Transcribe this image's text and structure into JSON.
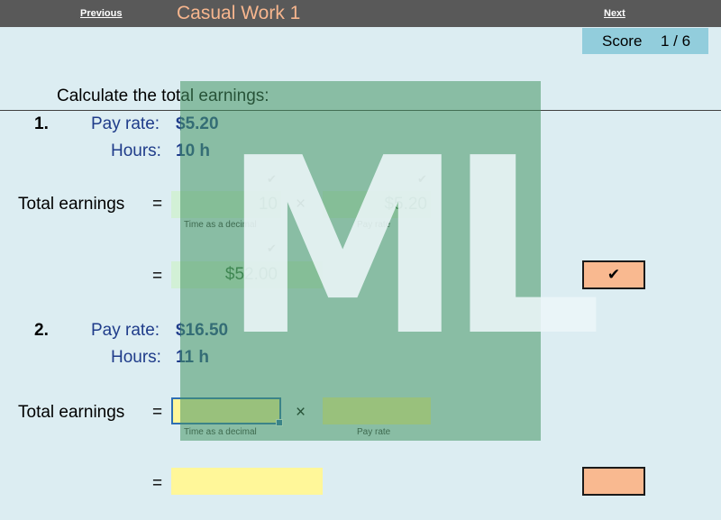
{
  "nav": {
    "previous": "Previous",
    "next": "Next",
    "title": "Casual Work 1"
  },
  "score": {
    "label": "Score",
    "value": "1 / 6"
  },
  "instruction": "Calculate the total earnings:",
  "watermark": "ML",
  "common": {
    "pay_rate_label": "Pay rate:",
    "hours_label": "Hours:",
    "total_label": "Total earnings",
    "equals": "=",
    "times": "×",
    "hint_time": "Time as a decimal",
    "hint_rate": "Pay rate",
    "tick": "✔"
  },
  "questions": [
    {
      "number": "1.",
      "pay_rate": "$5.20",
      "hours": "10 h",
      "time_decimal": "10",
      "rate": "$5.20",
      "total": "$52.00",
      "result": "✔"
    },
    {
      "number": "2.",
      "pay_rate": "$16.50",
      "hours": "11 h",
      "time_decimal": "",
      "rate": "",
      "total": "",
      "result": ""
    }
  ],
  "colors": {
    "background": "#dcedf2",
    "topbar": "#595959",
    "title": "#f7b68e",
    "score_box": "#92cddc",
    "correct_cell": "#d2f0d6",
    "empty_cell": "#fff799",
    "result_box": "#f9b990",
    "label_blue": "#1f3c8a"
  }
}
